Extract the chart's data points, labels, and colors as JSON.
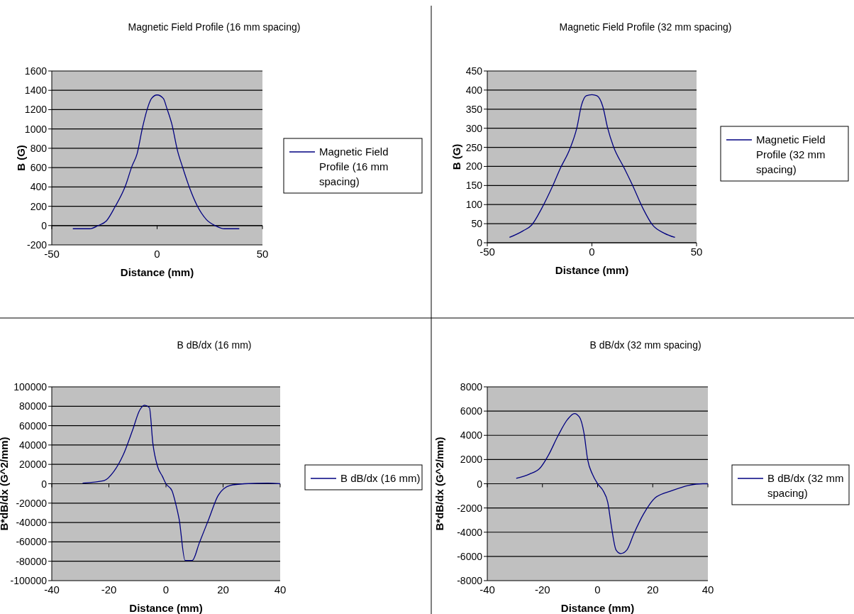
{
  "chart_data": [
    {
      "type": "line",
      "title": "Magnetic Field Profile (16 mm spacing)",
      "xlabel": "Distance (mm)",
      "ylabel": "B (G)",
      "xlim": [
        -50,
        50
      ],
      "xticks": [
        -50,
        0,
        50
      ],
      "ylim": [
        -200,
        1600
      ],
      "yticks": [
        -200,
        0,
        200,
        400,
        600,
        800,
        1000,
        1200,
        1400,
        1600
      ],
      "grid": "y",
      "legend": "right",
      "series": [
        {
          "name": "Magnetic Field Profile (16 mm spacing)",
          "color": "#000080",
          "x": [
            -40,
            -32,
            -28,
            -24,
            -20,
            -15,
            -12,
            -9.5,
            -7,
            -5,
            -2.7,
            0,
            3,
            4.6,
            7,
            9.8,
            12,
            15.4,
            18.8,
            23.4,
            27.9,
            32,
            39
          ],
          "values": [
            -33,
            -33,
            0,
            50,
            193,
            413,
            611,
            743,
            1007,
            1182,
            1314,
            1352,
            1314,
            1215,
            1050,
            765,
            611,
            391,
            215,
            62,
            -4,
            -33,
            -33
          ]
        }
      ]
    },
    {
      "type": "line",
      "title": "Magnetic Field Profile (32 mm spacing)",
      "xlabel": "Distance (mm)",
      "ylabel": "B (G)",
      "xlim": [
        -50,
        50
      ],
      "xticks": [
        -50,
        0,
        50
      ],
      "ylim": [
        0,
        450
      ],
      "yticks": [
        0,
        50,
        100,
        150,
        200,
        250,
        300,
        350,
        400,
        450
      ],
      "grid": "y",
      "legend": "right",
      "series": [
        {
          "name": "Magnetic Field Profile (32 mm spacing)",
          "color": "#000080",
          "x": [
            -39.4,
            -33,
            -28.7,
            -24,
            -18.5,
            -15,
            -10.6,
            -7.2,
            -5,
            -2.7,
            0,
            2.4,
            5.2,
            7.5,
            10.3,
            15.4,
            19.3,
            24.4,
            28.9,
            34.6,
            39.7
          ],
          "values": [
            14,
            31,
            47,
            90,
            152,
            196,
            245,
            301,
            360,
            385,
            388,
            385,
            357,
            301,
            252,
            196,
            152,
            90,
            47,
            25,
            14
          ]
        }
      ]
    },
    {
      "type": "line",
      "title": "B dB/dx (16 mm)",
      "xlabel": "Distance (mm)",
      "ylabel": "B*dB/dx (G^2/mm)",
      "xlim": [
        -40,
        40
      ],
      "xticks": [
        -40,
        -20,
        0,
        20,
        40
      ],
      "ylim": [
        -100000,
        100000
      ],
      "yticks": [
        -100000,
        -80000,
        -60000,
        -40000,
        -20000,
        0,
        20000,
        40000,
        60000,
        80000,
        100000
      ],
      "grid": "y",
      "legend": "right",
      "series": [
        {
          "name": "B dB/dx (16 mm)",
          "color": "#000080",
          "x": [
            -29.2,
            -21.7,
            -18.3,
            -15,
            -11.7,
            -9.2,
            -7.5,
            -5.8,
            -4.6,
            -2.9,
            -1.25,
            0,
            2.1,
            3.3,
            4.6,
            6.7,
            9.2,
            11.7,
            15,
            18.3,
            22.5,
            27.5,
            35.8,
            40
          ],
          "values": [
            700,
            3200,
            12500,
            29600,
            55300,
            76000,
            81000,
            78500,
            41800,
            17400,
            7600,
            0,
            -7100,
            -19300,
            -36400,
            -79200,
            -79200,
            -60900,
            -36400,
            -12000,
            -1700,
            0,
            700,
            0
          ]
        }
      ]
    },
    {
      "type": "line",
      "title": "B dB/dx (32 mm spacing)",
      "xlabel": "Distance (mm)",
      "ylabel": "B*dB/dx (G^2/mm)",
      "xlim": [
        -40,
        40
      ],
      "xticks": [
        -40,
        -20,
        0,
        20,
        40
      ],
      "ylim": [
        -8000,
        8000
      ],
      "yticks": [
        -8000,
        -6000,
        -4000,
        -2000,
        0,
        2000,
        4000,
        6000,
        8000
      ],
      "grid": "y",
      "legend": "right",
      "series": [
        {
          "name": "B dB/dx (32 mm spacing)",
          "color": "#000080",
          "x": [
            -29.5,
            -24.7,
            -20.9,
            -17.8,
            -14.4,
            -10.9,
            -8.4,
            -6.6,
            -4.9,
            -3.6,
            -1.9,
            0,
            2,
            3.7,
            5,
            6.7,
            8.4,
            10.6,
            13.2,
            16.6,
            20.9,
            27,
            33,
            38.2,
            40
          ],
          "values": [
            450,
            800,
            1290,
            2370,
            3940,
            5310,
            5800,
            5510,
            4140,
            1980,
            800,
            0,
            -570,
            -1550,
            -3510,
            -5470,
            -5760,
            -5470,
            -4100,
            -2530,
            -1160,
            -570,
            -140,
            0,
            0
          ]
        }
      ]
    }
  ]
}
